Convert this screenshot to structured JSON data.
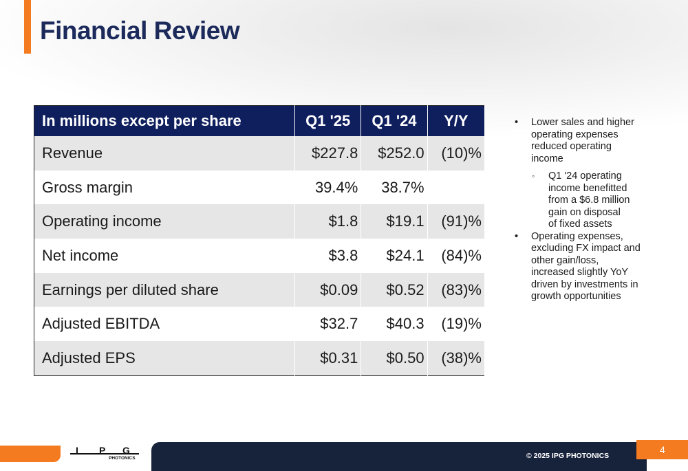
{
  "header": {
    "title": "Financial Review"
  },
  "table": {
    "columns": [
      "In millions except per share",
      "Q1 '25",
      "Q1 '24",
      "Y/Y"
    ],
    "rows": [
      [
        "Revenue",
        "$227.8",
        "$252.0",
        "(10)%"
      ],
      [
        "Gross margin",
        "39.4%",
        "38.7%"
      ],
      [
        "Operating income",
        "$1.8",
        "$19.1",
        "(91)%"
      ],
      [
        "Net income",
        "$3.8",
        "$24.1",
        "(84)%"
      ],
      [
        "Earnings per diluted share",
        "$0.09",
        "$0.52",
        "(83)%"
      ],
      [
        "Adjusted EBITDA",
        "$32.7",
        "$40.3",
        "(19)%"
      ],
      [
        "Adjusted EPS",
        "$0.31",
        "$0.50",
        "(38)%"
      ]
    ]
  },
  "notes": [
    {
      "text": "Lower sales and higher operating expenses reduced operating income",
      "sub": [
        "Q1 '24 operating income benefitted from a $6.8 million gain on disposal of fixed assets"
      ]
    },
    {
      "text": "Operating expenses, excluding FX impact and other gain/loss, increased slightly YoY driven by investments in growth opportunities"
    }
  ],
  "footer": {
    "logo": [
      "I",
      "P",
      "G"
    ],
    "logo_subtitle": "PHOTONICS",
    "copyright": "© 2025 IPG PHOTONICS",
    "page": "4"
  }
}
